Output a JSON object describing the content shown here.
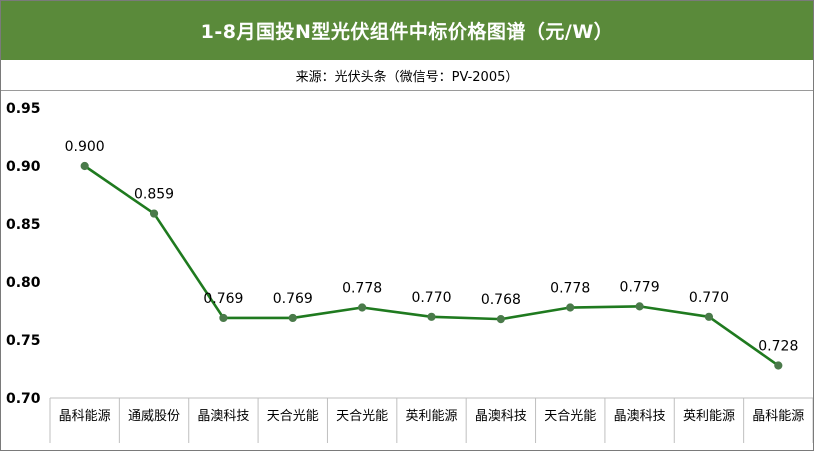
{
  "header": {
    "title": "1-8月国投N型光伏组件中标价格图谱（元/W）",
    "source": "来源：光伏头条（微信号：PV-2005）"
  },
  "colors": {
    "title_bg": "#5a8a3a",
    "line": "#1f7a1f",
    "marker": "#4a7a4a"
  },
  "chart_data": {
    "type": "line",
    "title": "1-8月国投N型光伏组件中标价格图谱（元/W）",
    "subtitle": "来源：光伏头条（微信号：PV-2005）",
    "categories": [
      "晶科能源",
      "通威股份",
      "晶澳科技",
      "天合光能",
      "天合光能",
      "英利能源",
      "晶澳科技",
      "天合光能",
      "晶澳科技",
      "英利能源",
      "晶科能源"
    ],
    "values": [
      0.9,
      0.859,
      0.769,
      0.769,
      0.778,
      0.77,
      0.768,
      0.778,
      0.779,
      0.77,
      0.728
    ],
    "value_labels": [
      "0.900",
      "0.859",
      "0.769",
      "0.769",
      "0.778",
      "0.770",
      "0.768",
      "0.778",
      "0.779",
      "0.770",
      "0.728"
    ],
    "yticks": [
      "0.70",
      "0.75",
      "0.80",
      "0.85",
      "0.90",
      "0.95"
    ],
    "ylim": [
      0.7,
      0.95
    ],
    "grid": false,
    "legend": "none"
  }
}
